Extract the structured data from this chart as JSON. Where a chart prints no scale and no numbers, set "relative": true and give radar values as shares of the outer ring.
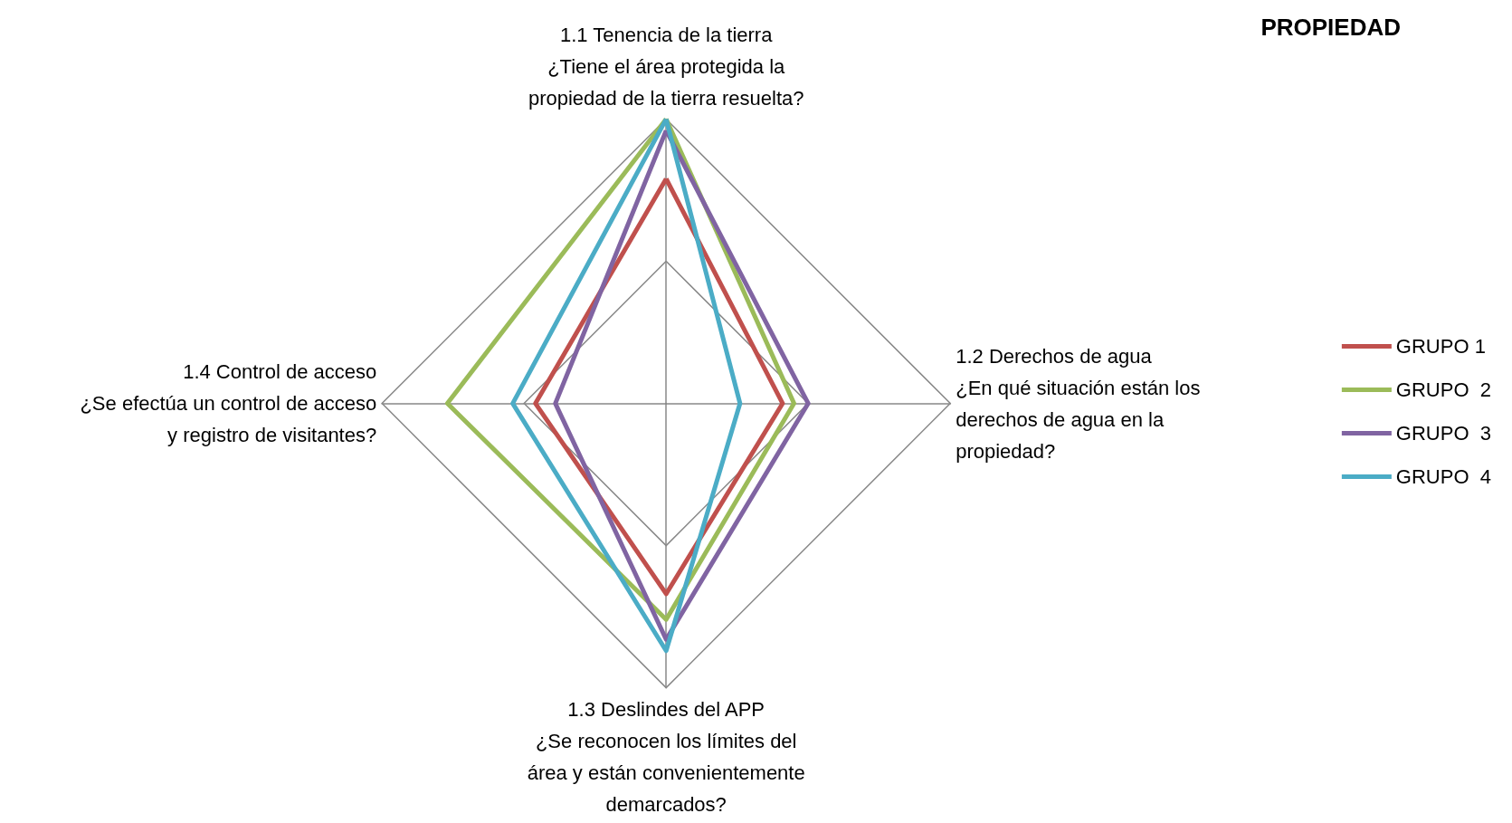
{
  "chart_data": {
    "type": "radar",
    "title": "PROPIEDAD",
    "relative": true,
    "legend": "right",
    "grid": true,
    "categories": [
      "1.1 Tenencia de la tierra\n¿Tiene el área protegida la\npropiedad de la tierra resuelta?",
      "1.2 Derechos de agua\n¿En qué situación están los\nderechos de agua en la\npropiedad?",
      "1.3 Deslindes del APP\n¿Se reconocen los límites del\nárea y están convenientemente\ndemarcados?",
      "1.4 Control de acceso\n¿Se efectúa un control de acceso\ny registro de visitantes?"
    ],
    "series": [
      {
        "name": "GRUPO 1",
        "color": "#c0504d",
        "values": [
          0.79,
          0.41,
          0.67,
          0.46
        ]
      },
      {
        "name": "GRUPO  2",
        "color": "#9bbb59",
        "values": [
          1.0,
          0.45,
          0.76,
          0.77
        ]
      },
      {
        "name": "GRUPO  3",
        "color": "#8064a2",
        "values": [
          0.96,
          0.5,
          0.83,
          0.39
        ]
      },
      {
        "name": "GRUPO  4",
        "color": "#4bacc6",
        "values": [
          1.0,
          0.26,
          0.87,
          0.54
        ]
      }
    ]
  }
}
